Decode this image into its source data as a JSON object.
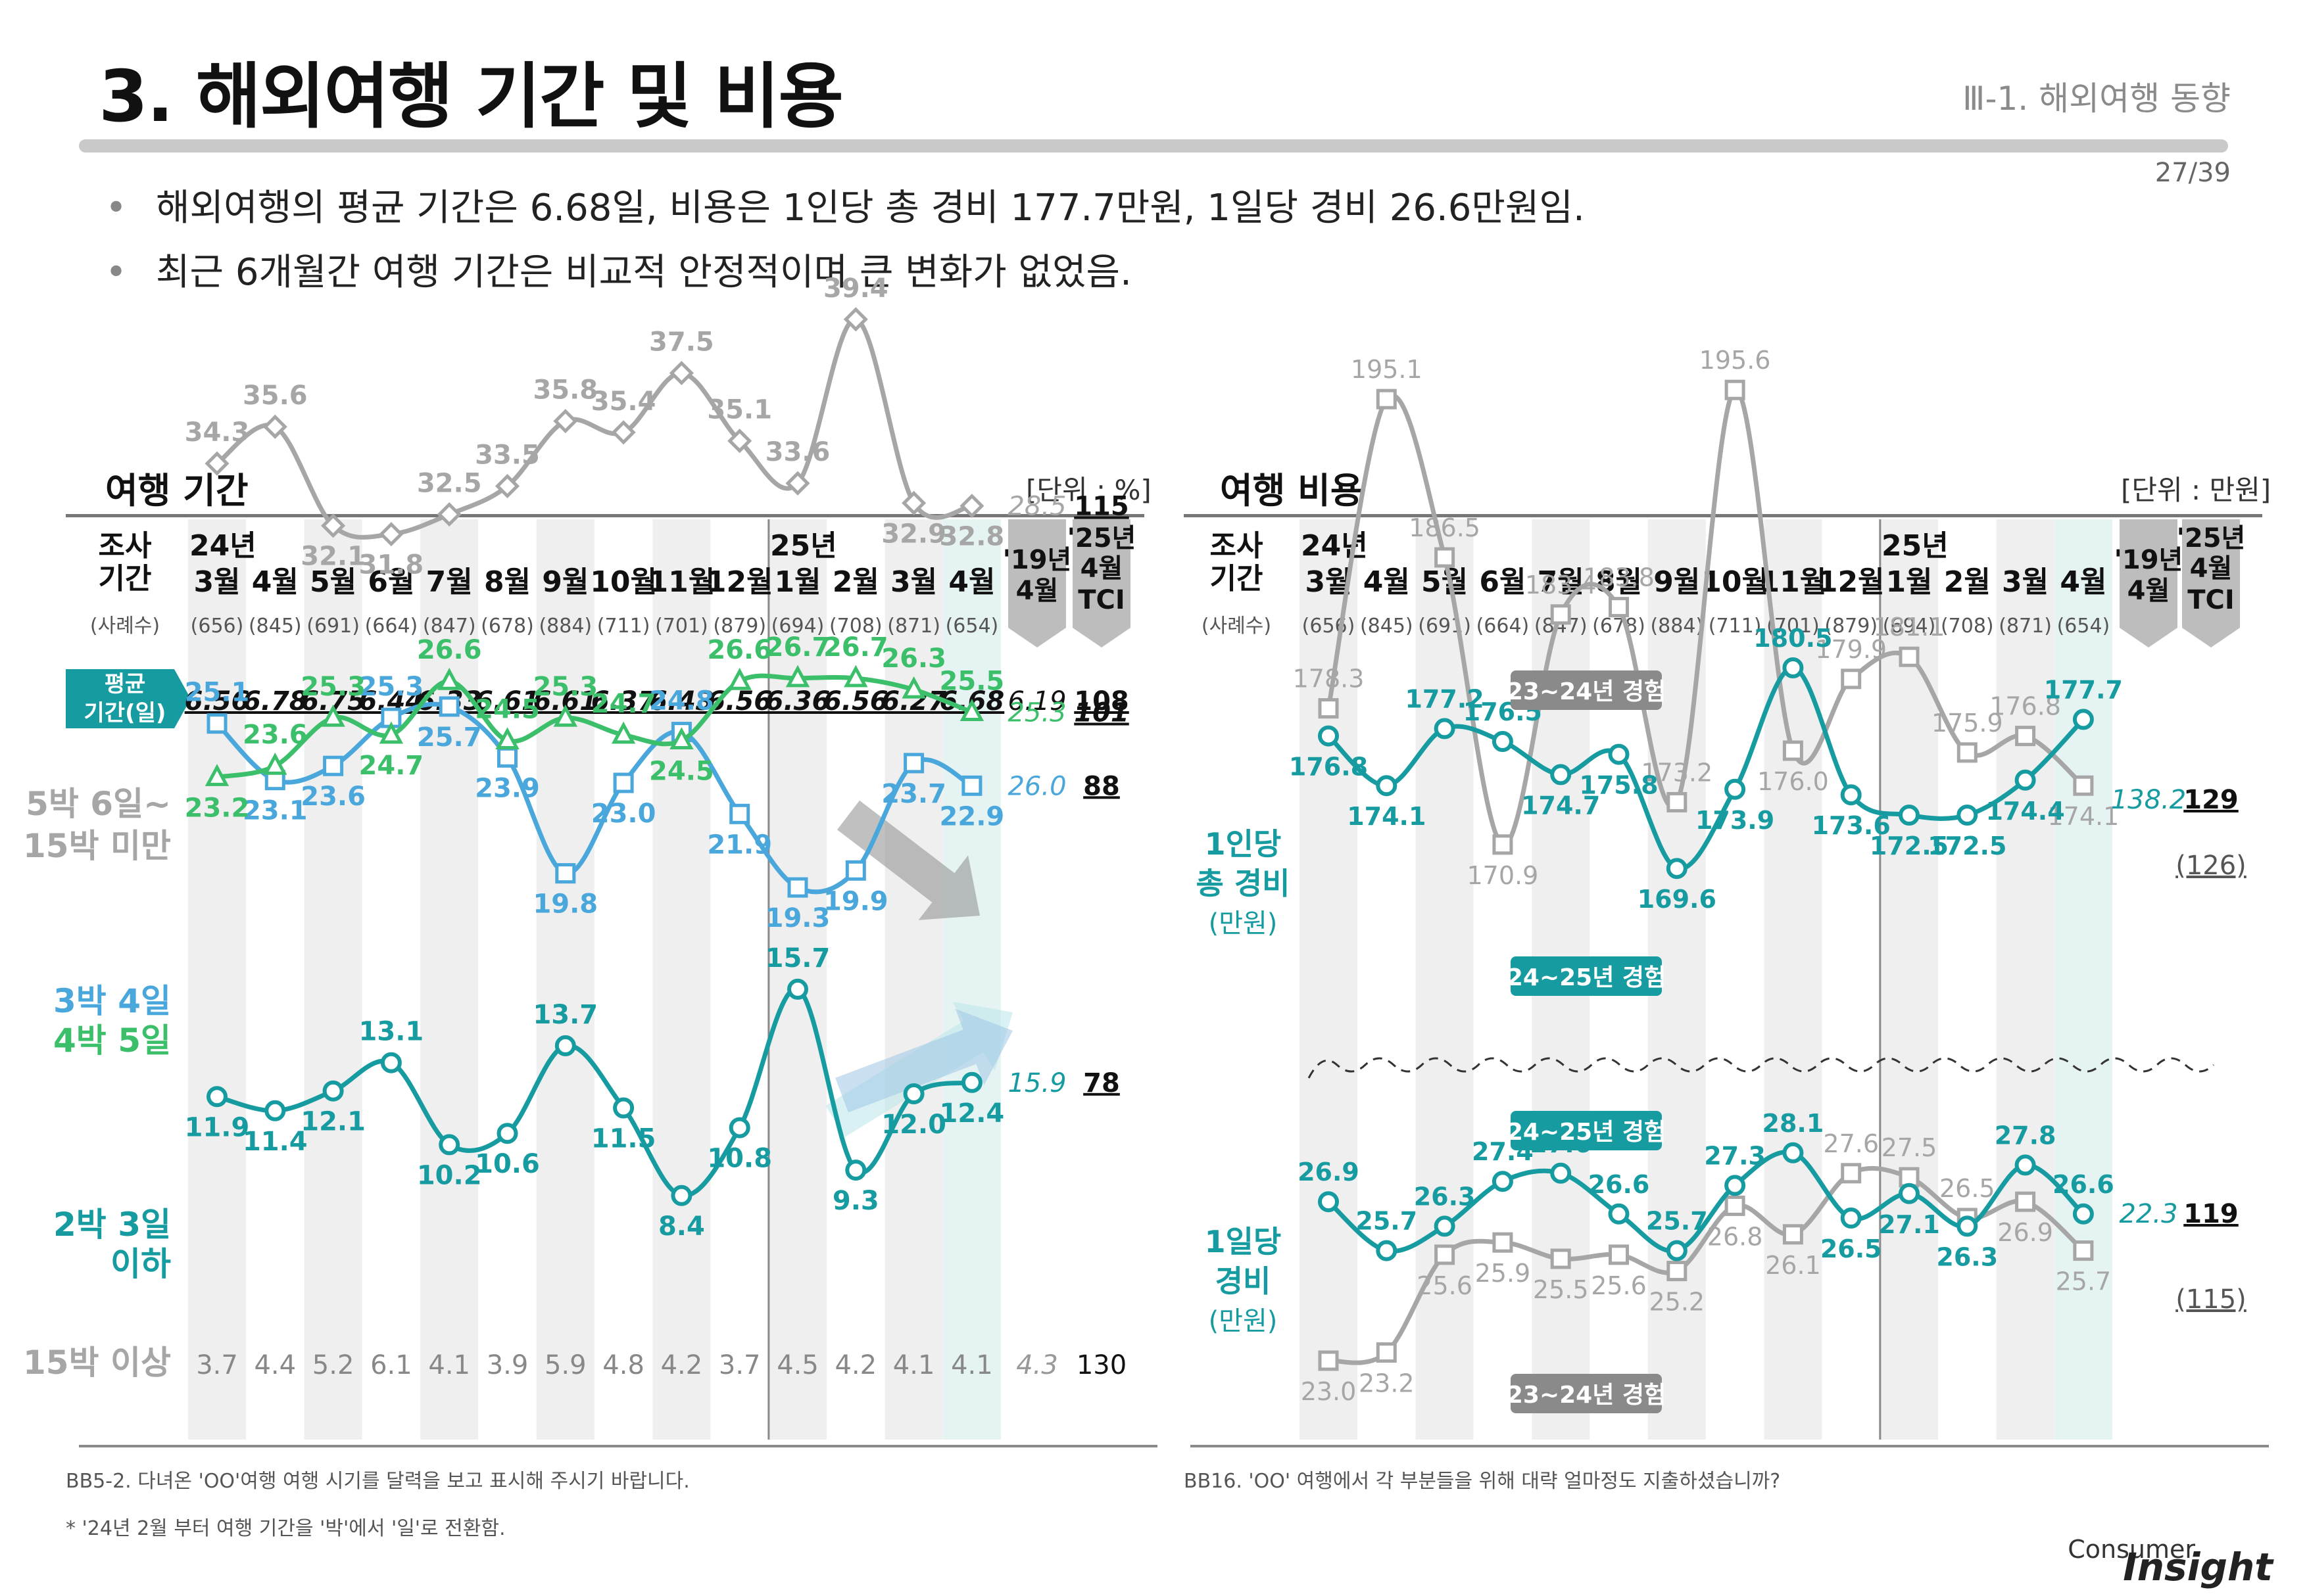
{
  "header": {
    "title": "3. 해외여행 기간 및 비용",
    "section": "Ⅲ-1. 해외여행 동향",
    "page": "27/39"
  },
  "bullets": [
    "해외여행의 평균 기간은 6.68일, 비용은 1인당 총 경비 177.7만원, 1일당 경비 26.6만원임.",
    "최근 6개월간 여행 기간은 비교적 안정적이며 큰 변화가 없었음."
  ],
  "left_panel": {
    "title": "여행 기간",
    "unit": "[단위 : %]"
  },
  "right_panel": {
    "title": "여행 비용",
    "unit": "[단위 : 만원]"
  },
  "columns": {
    "survey_label": [
      "조사",
      "기간"
    ],
    "sample_label": "(사례수)",
    "years": [
      "24년",
      "25년"
    ],
    "months": [
      "3월",
      "4월",
      "5월",
      "6월",
      "7월",
      "8월",
      "9월",
      "10월",
      "11월",
      "12월",
      "1월",
      "2월",
      "3월",
      "4월"
    ],
    "samples": [
      "(656)",
      "(845)",
      "(691)",
      "(664)",
      "(847)",
      "(678)",
      "(884)",
      "(711)",
      "(701)",
      "(879)",
      "(694)",
      "(708)",
      "(871)",
      "(654)"
    ],
    "ref19": [
      "'19년",
      "4월"
    ],
    "tci": [
      "'25년",
      "4월",
      "TCI"
    ]
  },
  "badges": {
    "exp_2324_top": "23~24년 경험",
    "exp_2425_top": "24~25년 경험",
    "exp_2425_bottom": "24~25년 경험",
    "exp_2324_bottom": "23~24년 경험"
  },
  "footnotes": {
    "left1": "BB5-2. 다녀온 'OO'여행 여행 시기를 달력을 보고 표시해 주시기 바랍니다.",
    "left2": "* '24년 2월 부터 여행 기간을 '박'에서 '일'로 전환함.",
    "right1": "BB16. 'OO' 여행에서 각 부분들을 위해 대략 얼마정도 지출하셨습니까?"
  },
  "logo": {
    "consumer": "Consumer",
    "insight": "Insight"
  },
  "colors": {
    "teal": "#169ba0",
    "blue": "#4aa7dc",
    "green": "#3cbf6a",
    "gray": "#a6a6a6",
    "band": "#efefef",
    "highlight": "#e6f3f3",
    "ref_tab": "#bdbdbd"
  },
  "chart_data": [
    {
      "type": "line",
      "title": "여행 기간",
      "unit": "[단위 : %]",
      "categories": [
        "3월",
        "4월",
        "5월",
        "6월",
        "7월",
        "8월",
        "9월",
        "10월",
        "11월",
        "12월",
        "1월",
        "2월",
        "3월",
        "4월"
      ],
      "avg_label": [
        "평균",
        "기간(일)"
      ],
      "avg_days": [
        6.56,
        6.78,
        6.75,
        6.44,
        6.33,
        6.61,
        6.61,
        6.37,
        6.43,
        6.56,
        6.36,
        6.56,
        6.27,
        6.68
      ],
      "avg_ref": 6.19,
      "avg_tci": 108,
      "series": [
        {
          "name": "5박 6일~\n15박 미만",
          "label_lines": [
            "5박 6일~",
            "15박 미만"
          ],
          "color": "#a6a6a6",
          "marker": "diamond",
          "values": [
            34.3,
            35.6,
            32.1,
            31.8,
            32.5,
            33.5,
            35.8,
            35.4,
            37.5,
            35.1,
            33.6,
            39.4,
            32.9,
            32.8
          ],
          "ref": 28.5,
          "tci": 115
        },
        {
          "name": "3박 4일",
          "label_lines": [
            "3박 4일"
          ],
          "color": "#4aa7dc",
          "marker": "square",
          "values": [
            25.1,
            23.1,
            23.6,
            25.3,
            25.7,
            23.9,
            19.8,
            23.0,
            24.8,
            21.9,
            19.3,
            19.9,
            23.7,
            22.9
          ],
          "ref": 26.0,
          "tci": 88
        },
        {
          "name": "4박 5일",
          "label_lines": [
            "4박 5일"
          ],
          "color": "#3cbf6a",
          "marker": "triangle",
          "values": [
            23.2,
            23.6,
            25.3,
            24.7,
            26.6,
            24.5,
            25.3,
            24.7,
            24.5,
            26.6,
            26.7,
            26.7,
            26.3,
            25.5
          ],
          "ref": 25.3,
          "tci": 101
        },
        {
          "name": "2박 3일\n이하",
          "label_lines": [
            "2박 3일",
            "이하"
          ],
          "color": "#169ba0",
          "marker": "circle",
          "values": [
            11.9,
            11.4,
            12.1,
            13.1,
            10.2,
            10.6,
            13.7,
            11.5,
            8.4,
            10.8,
            15.7,
            9.3,
            12.0,
            12.4
          ],
          "ref": 15.9,
          "tci": 78
        }
      ],
      "long_stay": {
        "name": "15박 이상",
        "values": [
          3.7,
          4.4,
          5.2,
          6.1,
          4.1,
          3.9,
          5.9,
          4.8,
          4.2,
          3.7,
          4.5,
          4.2,
          4.1,
          4.1
        ],
        "ref": 4.3,
        "tci": 130
      }
    },
    {
      "type": "line",
      "title": "여행 비용",
      "unit": "[단위 : 만원]",
      "categories": [
        "3월",
        "4월",
        "5월",
        "6월",
        "7월",
        "8월",
        "9월",
        "10월",
        "11월",
        "12월",
        "1월",
        "2월",
        "3월",
        "4월"
      ],
      "groups": [
        {
          "name": "1인당 총 경비 (만원)",
          "label_lines": [
            "1인당",
            "총 경비",
            "(만원)"
          ],
          "series": [
            {
              "name": "24~25년 경험",
              "color": "#169ba0",
              "marker": "circle",
              "values": [
                176.8,
                174.1,
                177.2,
                176.5,
                174.7,
                175.8,
                169.6,
                173.9,
                180.5,
                173.6,
                172.5,
                172.5,
                174.4,
                177.7
              ],
              "ref": 138.2,
              "tci": 129
            },
            {
              "name": "23~24년 경험",
              "color": "#a6a6a6",
              "marker": "square",
              "values": [
                178.3,
                195.1,
                186.5,
                170.9,
                183.4,
                183.8,
                173.2,
                195.6,
                176.0,
                179.9,
                181.1,
                175.9,
                176.8,
                174.1
              ],
              "tci": "(126)"
            }
          ]
        },
        {
          "name": "1일당 경비 (만원)",
          "label_lines": [
            "1일당",
            "경비",
            "(만원)"
          ],
          "series": [
            {
              "name": "24~25년 경험",
              "color": "#169ba0",
              "marker": "circle",
              "values": [
                26.9,
                25.7,
                26.3,
                27.4,
                27.6,
                26.6,
                25.7,
                27.3,
                28.1,
                26.5,
                27.1,
                26.3,
                27.8,
                26.6
              ],
              "ref": 22.3,
              "tci": 119
            },
            {
              "name": "23~24년 경험",
              "color": "#a6a6a6",
              "marker": "square",
              "values": [
                23.0,
                23.2,
                25.6,
                25.9,
                25.5,
                25.6,
                25.2,
                26.8,
                26.1,
                27.6,
                27.5,
                26.5,
                26.9,
                25.7
              ],
              "tci": "(115)"
            }
          ]
        }
      ]
    }
  ]
}
